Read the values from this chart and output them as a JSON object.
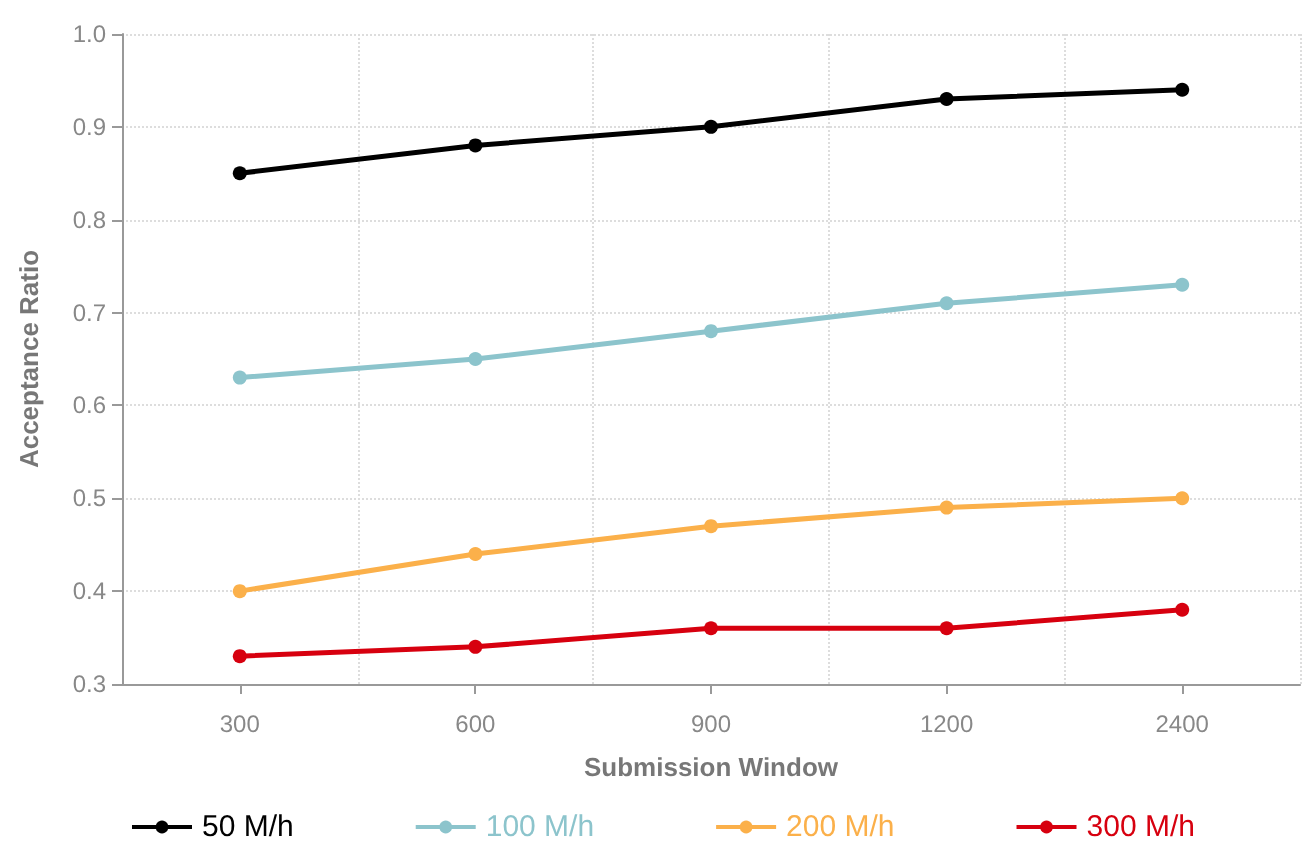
{
  "chart_data": {
    "type": "line",
    "xlabel": "Submission Window",
    "ylabel": "Acceptance Ratio",
    "categories": [
      "300",
      "600",
      "900",
      "1200",
      "2400"
    ],
    "series": [
      {
        "name": "50 M/h",
        "color": "#000000",
        "values": [
          0.85,
          0.88,
          0.9,
          0.93,
          0.94
        ]
      },
      {
        "name": "100 M/h",
        "color": "#8cc4cc",
        "values": [
          0.63,
          0.65,
          0.68,
          0.71,
          0.73
        ]
      },
      {
        "name": "200 M/h",
        "color": "#fbb04a",
        "values": [
          0.4,
          0.44,
          0.47,
          0.49,
          0.5
        ]
      },
      {
        "name": "300 M/h",
        "color": "#d7000f",
        "values": [
          0.33,
          0.34,
          0.36,
          0.36,
          0.38
        ]
      }
    ],
    "ylim": [
      0.3,
      1.0
    ],
    "yticks": [
      {
        "value": 0.3,
        "label": "0.3"
      },
      {
        "value": 0.4,
        "label": "0.4"
      },
      {
        "value": 0.5,
        "label": "0.5"
      },
      {
        "value": 0.6,
        "label": "0.6"
      },
      {
        "value": 0.7,
        "label": "0.7"
      },
      {
        "value": 0.8,
        "label": "0.8"
      },
      {
        "value": 0.9,
        "label": "0.9"
      },
      {
        "value": 1.0,
        "label": "1.0"
      }
    ],
    "grid": true,
    "legend": "bottom",
    "marker": "circle",
    "line_style": "solid"
  }
}
